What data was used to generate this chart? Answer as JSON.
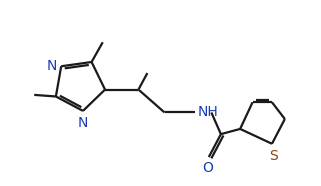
{
  "bg_color": "#ffffff",
  "line_color": "#1a1a1a",
  "atom_color": "#1a3db5",
  "s_color": "#8B4513",
  "bond_lw": 1.6,
  "font_size": 10,
  "fig_width": 3.21,
  "fig_height": 1.86,
  "dpi": 100,
  "xlim": [
    0,
    10
  ],
  "ylim": [
    0,
    5.8
  ]
}
